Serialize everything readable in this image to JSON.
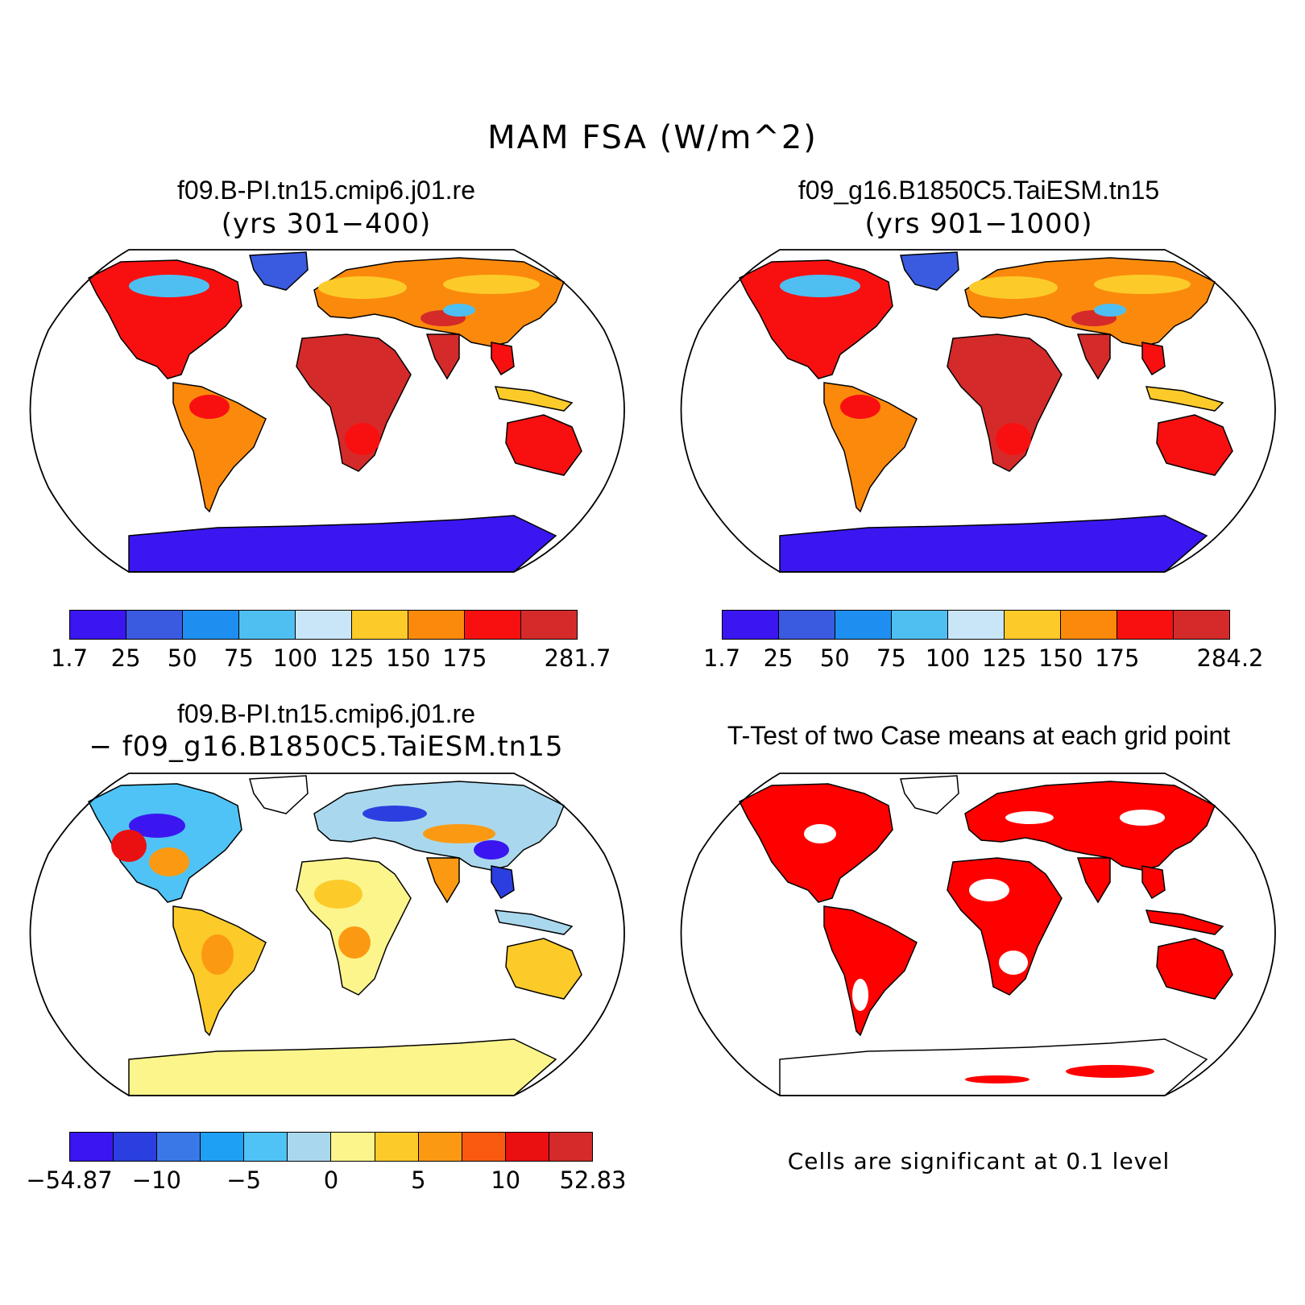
{
  "figure": {
    "title": "MAM FSA (W/m^2)"
  },
  "panels": {
    "top_left": {
      "title": "f09.B-PI.tn15.cmip6.j01.re",
      "subtitle": "(yrs 301−400)",
      "colorbar": {
        "colors": [
          "#3b16f0",
          "#3a5ae0",
          "#1e8ff0",
          "#4fbff2",
          "#c9e6f8",
          "#fccb2a",
          "#fb8a0c",
          "#f81010",
          "#d52a2a"
        ],
        "labels": [
          "1.7",
          "25",
          "50",
          "75",
          "100",
          "125",
          "150",
          "175",
          "281.7"
        ]
      }
    },
    "top_right": {
      "title": "f09_g16.B1850C5.TaiESM.tn15",
      "subtitle": "(yrs 901−1000)",
      "colorbar": {
        "colors": [
          "#3b16f0",
          "#3a5ae0",
          "#1e8ff0",
          "#4fbff2",
          "#c9e6f8",
          "#fccb2a",
          "#fb8a0c",
          "#f81010",
          "#d52a2a"
        ],
        "labels": [
          "1.7",
          "25",
          "50",
          "75",
          "100",
          "125",
          "150",
          "175",
          "284.2"
        ]
      }
    },
    "bottom_left": {
      "title": "f09.B-PI.tn15.cmip6.j01.re",
      "subtitle": "− f09_g16.B1850C5.TaiESM.tn15",
      "colorbar": {
        "colors": [
          "#3b16f0",
          "#2b3fe0",
          "#3a78e8",
          "#1ea0f5",
          "#4fc3f5",
          "#a9d8ee",
          "#fcf58c",
          "#fccb2a",
          "#fb9a12",
          "#fa5a10",
          "#ea0f10",
          "#d52a2a"
        ],
        "labels": [
          "−54.87",
          "−10",
          "−5",
          "0",
          "5",
          "10",
          "52.83"
        ]
      }
    },
    "bottom_right": {
      "title": "T-Test of two Case means at each grid point",
      "note": "Cells are significant at 0.1 level",
      "significant_color": "#ff0000"
    }
  }
}
